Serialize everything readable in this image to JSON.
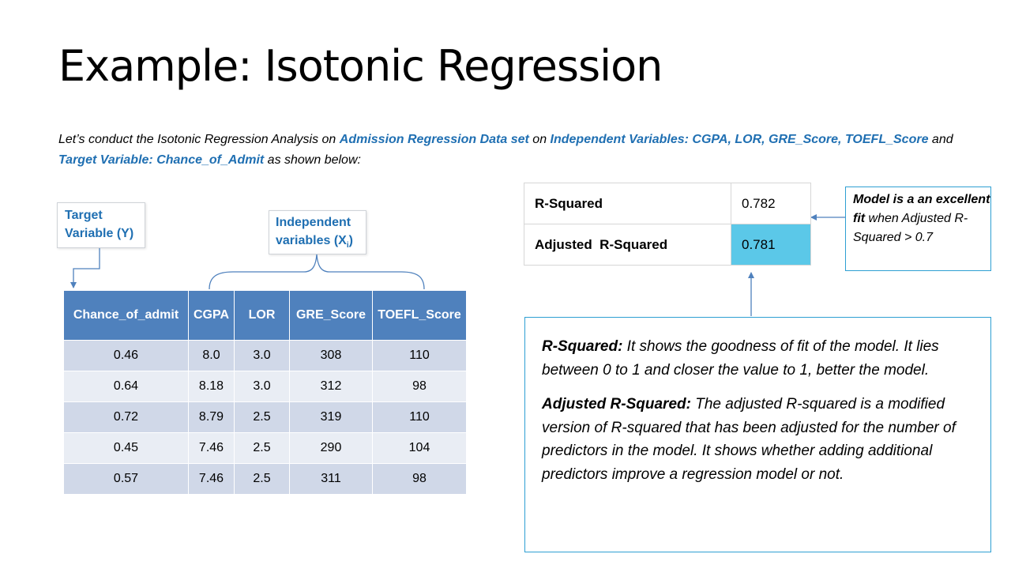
{
  "title": "Example: Isotonic Regression",
  "intro": {
    "part1": "Let’s conduct the Isotonic Regression Analysis on ",
    "dataset": "Admission Regression Data set",
    "part2": " on ",
    "independent": "Independent Variables: CGPA, LOR, GRE_Score, TOEFL_Score",
    "part3": " and",
    "target": "Target Variable: Chance_of_Admit",
    "part4": " as shown below:"
  },
  "callouts": {
    "target_line1": "Target",
    "target_line2": "Variable (Y)",
    "independent_line1": "Independent",
    "independent_line2": "variables (X",
    "independent_sub": "i",
    "independent_close": ")"
  },
  "data_table": {
    "headers": [
      "Chance_of_admit",
      "CGPA",
      "LOR",
      "GRE_Score",
      "TOEFL_Score"
    ],
    "rows": [
      [
        "0.46",
        "8.0",
        "3.0",
        "308",
        "110"
      ],
      [
        "0.64",
        "8.18",
        "3.0",
        "312",
        "98"
      ],
      [
        "0.72",
        "8.79",
        "2.5",
        "319",
        "110"
      ],
      [
        "0.45",
        "7.46",
        "2.5",
        "290",
        "104"
      ],
      [
        "0.57",
        "7.46",
        "2.5",
        "311",
        "98"
      ]
    ]
  },
  "metrics": [
    {
      "label": "R-Squared",
      "value": "0.782"
    },
    {
      "label": "Adjusted  R-Squared",
      "value": "0.781"
    }
  ],
  "fit_note": {
    "bold": "Model is a an excellent fit",
    "rest": " when Adjusted R-Squared > 0.7"
  },
  "explanation": {
    "r2_term": "R-Squared:",
    "r2_text": " It shows the goodness of fit of the model. It lies between 0 to 1 and closer the value to 1, better the model.",
    "adj_term": "Adjusted R-Squared:",
    "adj_text": " The adjusted R-squared is a modified version of R-squared that has been adjusted for the number of predictors in the model. It shows whether adding additional predictors improve a regression model or not."
  },
  "colors": {
    "accent_blue": "#1f6fb2",
    "table_header": "#4f81bd",
    "row_band_1": "#d0d8e8",
    "row_band_2": "#e9edf4",
    "highlight_cell": "#5bc8e8",
    "box_border": "#2e9fd3"
  }
}
